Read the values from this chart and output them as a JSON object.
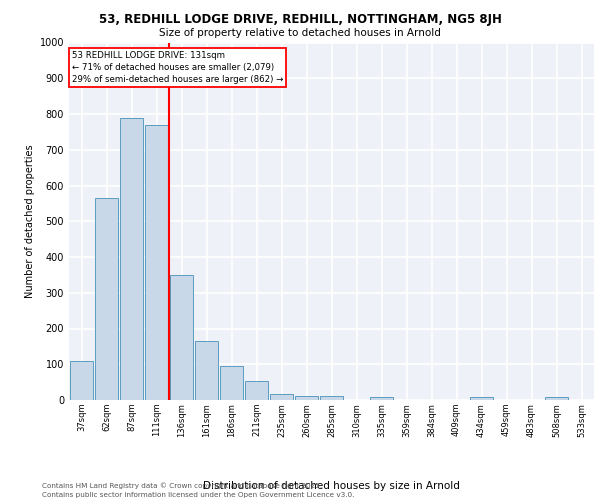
{
  "title1": "53, REDHILL LODGE DRIVE, REDHILL, NOTTINGHAM, NG5 8JH",
  "title2": "Size of property relative to detached houses in Arnold",
  "xlabel": "Distribution of detached houses by size in Arnold",
  "ylabel": "Number of detached properties",
  "bar_color": "#c8d8e8",
  "bar_edge_color": "#5a9cc0",
  "background_color": "#eef2f8",
  "grid_color": "#ffffff",
  "annotation_box_text": "53 REDHILL LODGE DRIVE: 131sqm\n← 71% of detached houses are smaller (2,079)\n29% of semi-detached houses are larger (862) →",
  "footer1": "Contains HM Land Registry data © Crown copyright and database right 2025.",
  "footer2": "Contains public sector information licensed under the Open Government Licence v3.0.",
  "categories": [
    "37sqm",
    "62sqm",
    "87sqm",
    "111sqm",
    "136sqm",
    "161sqm",
    "186sqm",
    "211sqm",
    "235sqm",
    "260sqm",
    "285sqm",
    "310sqm",
    "335sqm",
    "359sqm",
    "384sqm",
    "409sqm",
    "434sqm",
    "459sqm",
    "483sqm",
    "508sqm",
    "533sqm"
  ],
  "values": [
    110,
    565,
    790,
    770,
    350,
    165,
    95,
    52,
    18,
    12,
    10,
    0,
    8,
    0,
    0,
    0,
    7,
    0,
    0,
    7,
    0
  ],
  "ylim": [
    0,
    1000
  ],
  "yticks": [
    0,
    100,
    200,
    300,
    400,
    500,
    600,
    700,
    800,
    900,
    1000
  ]
}
